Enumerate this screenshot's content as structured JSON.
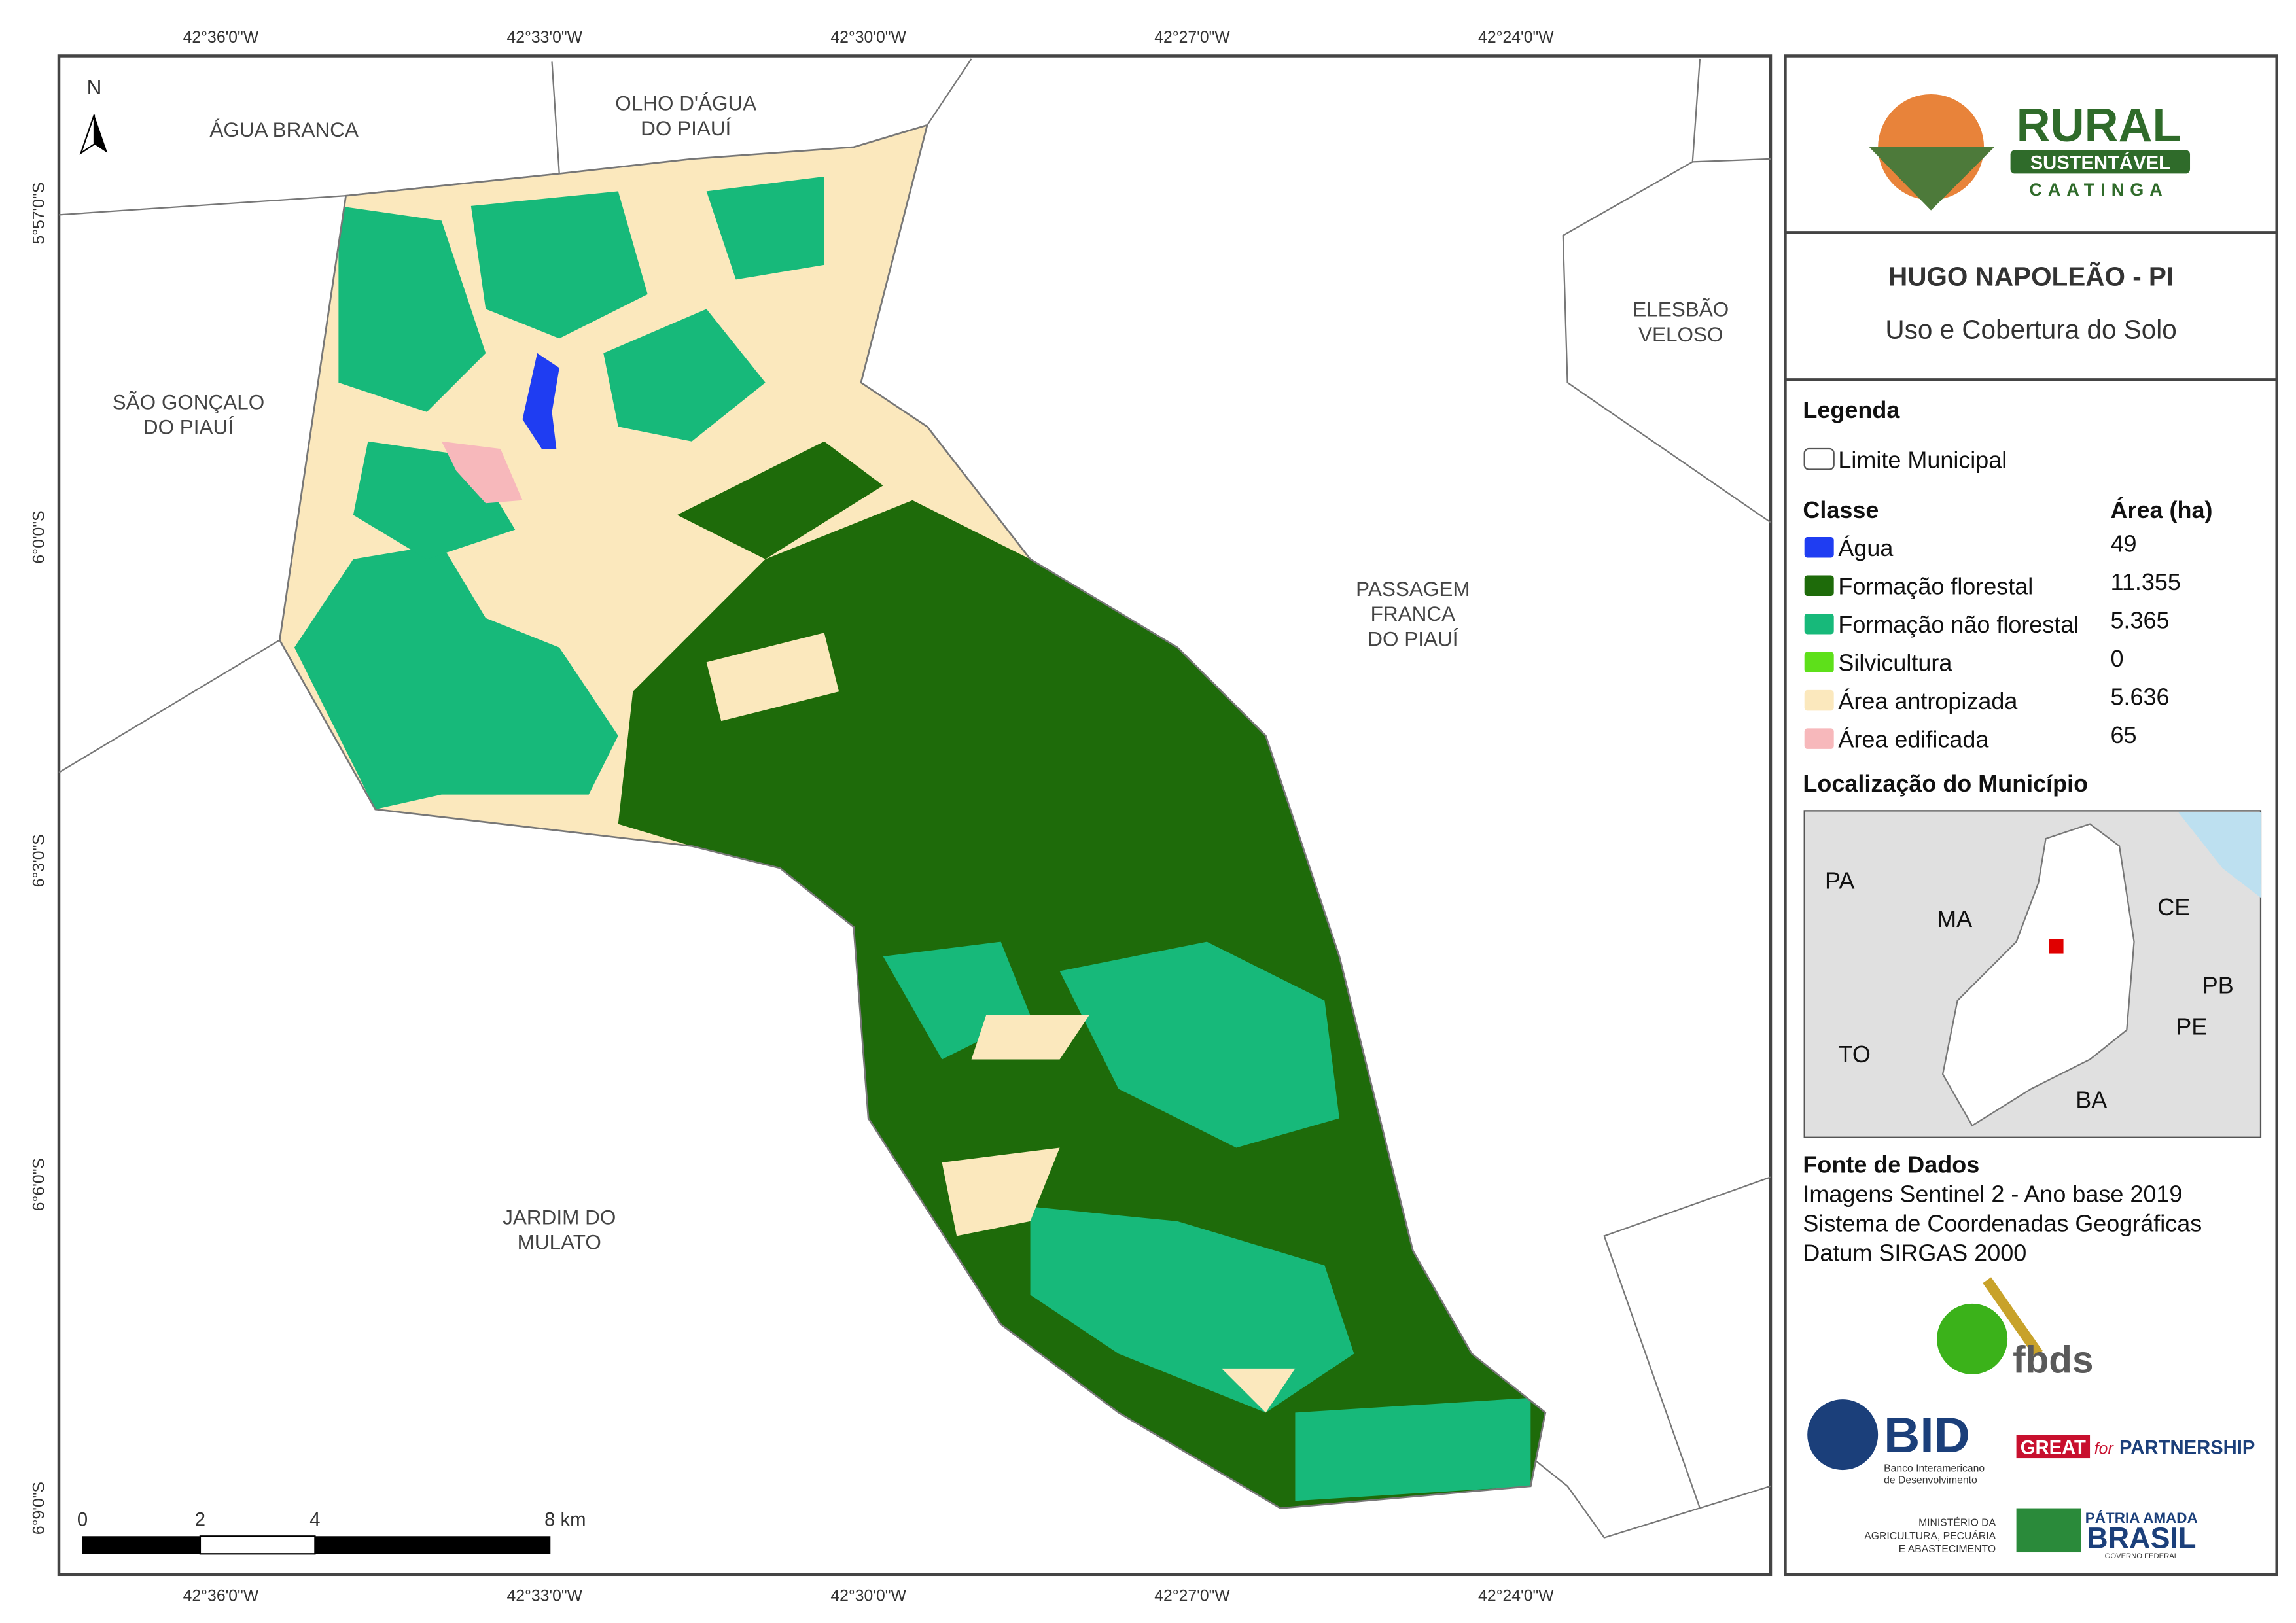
{
  "header": {
    "title": "HUGO NAPOLEÃO - PI",
    "subtitle": "Uso e Cobertura do Solo"
  },
  "logo": {
    "name": "RURAL",
    "sub": "SUSTENTÁVEL",
    "region": "CAATINGA"
  },
  "map": {
    "north": "N",
    "neighbors": [
      [
        "ÁGUA BRANCA"
      ],
      [
        "OLHO D'ÁGUA",
        "DO PIAUÍ"
      ],
      [
        "SÃO GONÇALO",
        "DO PIAUÍ"
      ],
      [
        "ELESBÃO",
        "VELOSO"
      ],
      [
        "PASSAGEM",
        "FRANCA",
        "DO PIAUÍ"
      ],
      [
        "JARDIM DO",
        "MULATO"
      ]
    ],
    "lon_labels": [
      "42°36'0\"W",
      "42°33'0\"W",
      "42°30'0\"W",
      "42°27'0\"W",
      "42°24'0\"W"
    ],
    "lat_labels": [
      "5°57'0\"S",
      "6°0'0\"S",
      "6°3'0\"S",
      "6°6'0\"S",
      "6°9'0\"S"
    ],
    "scale_labels": [
      "0",
      "2",
      "4",
      "8 km"
    ]
  },
  "legend": {
    "title": "Legenda",
    "boundary": "Limite Municipal",
    "class_header": "Classe",
    "area_header": "Área (ha)",
    "classes": [
      {
        "name": "Água",
        "area": "49",
        "color": "#1f3df2"
      },
      {
        "name": "Formação florestal",
        "area": "11.355",
        "color": "#1e6b0a"
      },
      {
        "name": "Formação não florestal",
        "area": "5.365",
        "color": "#17b97a"
      },
      {
        "name": "Silvicultura",
        "area": "0",
        "color": "#5ee01a"
      },
      {
        "name": "Área antropizada",
        "area": "5.636",
        "color": "#fbe8bd"
      },
      {
        "name": "Área edificada",
        "area": "65",
        "color": "#f7b8bb"
      }
    ]
  },
  "location": {
    "title": "Localização do Município",
    "states": [
      "PA",
      "MA",
      "CE",
      "PB",
      "PE",
      "TO",
      "BA"
    ]
  },
  "sources": {
    "title": "Fonte de Dados",
    "lines": [
      "Imagens Sentinel 2 - Ano base 2019",
      "Sistema de Coordenadas Geográficas",
      "Datum SIRGAS 2000"
    ]
  },
  "partners": {
    "fbds": "fbds",
    "bid": "BID",
    "bid_name": [
      "Banco Interamericano",
      "de Desenvolvimento"
    ],
    "great": "GREAT",
    "great_for": "for",
    "great_partnership": "PARTNERSHIP",
    "ministry": [
      "MINISTÉRIO DA",
      "AGRICULTURA, PECUÁRIA",
      "E ABASTECIMENTO"
    ],
    "brasil_top": "PÁTRIA AMADA",
    "brasil": "BRASIL",
    "gov": "GOVERNO FEDERAL"
  }
}
